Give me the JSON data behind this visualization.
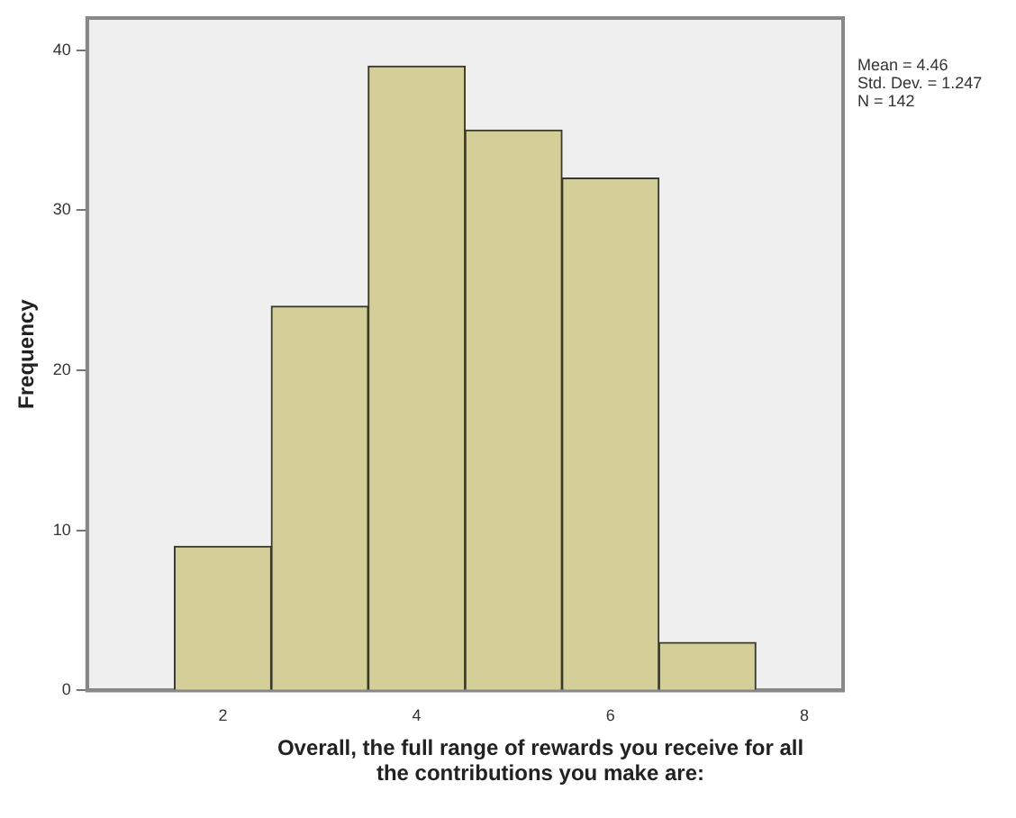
{
  "chart_data": {
    "type": "histogram",
    "xlabel": "Overall, the full range of rewards you receive for all the contributions you make are:",
    "ylabel": "Frequency",
    "bins": [
      1.5,
      2.5,
      3.5,
      4.5,
      5.5,
      6.5,
      7.5
    ],
    "values": [
      9,
      24,
      39,
      35,
      32,
      3
    ],
    "color": "#d4cf99",
    "xlim": [
      0.6,
      8.4
    ],
    "xticks": [
      2,
      4,
      6,
      8
    ],
    "ylim": [
      0,
      42
    ],
    "yticks": [
      0,
      10,
      20,
      30,
      40
    ],
    "grid": false,
    "legend": false,
    "annotations": [
      "Mean = 4.46",
      "Std. Dev. = 1.247",
      "N = 142"
    ]
  }
}
